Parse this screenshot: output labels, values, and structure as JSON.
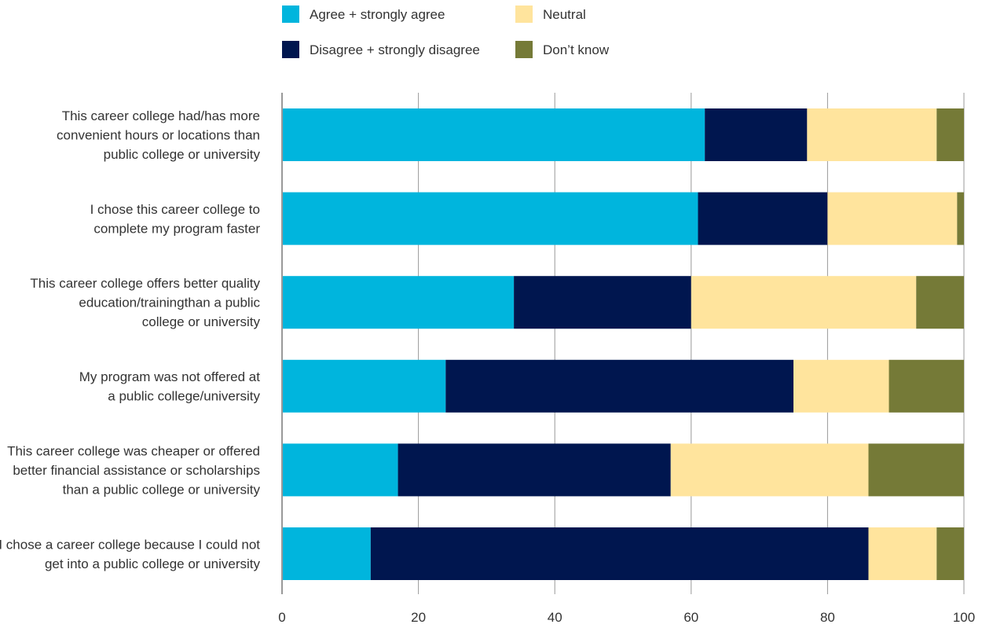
{
  "chart_data": {
    "type": "bar",
    "orientation": "horizontal",
    "stacked": true,
    "title": "",
    "xlabel": "",
    "ylabel": "",
    "xlim": [
      0,
      100
    ],
    "xticks": [
      0,
      20,
      40,
      60,
      80,
      100
    ],
    "grid": true,
    "legend_position": "top",
    "categories": [
      [
        "This career college had/has more",
        "convenient hours or locations than",
        "public college or university"
      ],
      [
        "I chose this career college to",
        "complete my program faster"
      ],
      [
        "This career college offers better quality",
        "education/trainingthan a public",
        "college or university"
      ],
      [
        "My program was not offered at",
        "a public college/university"
      ],
      [
        "This career college was cheaper or offered",
        "better financial assistance or scholarships",
        "than a public college or university"
      ],
      [
        "I chose a career college because I could not",
        "get into a public college or university"
      ]
    ],
    "series": [
      {
        "name": "Agree + strongly agree",
        "color": "#00B5DD",
        "values": [
          62,
          61,
          34,
          24,
          17,
          13
        ]
      },
      {
        "name": "Disagree + strongly disagree",
        "color": "#00164F",
        "values": [
          15,
          19,
          26,
          51,
          40,
          73
        ]
      },
      {
        "name": "Neutral",
        "color": "#FFE49D",
        "values": [
          19,
          19,
          33,
          14,
          29,
          10
        ]
      },
      {
        "name": "Don’t know",
        "color": "#757A37",
        "values": [
          4,
          1,
          7,
          11,
          14,
          4
        ]
      }
    ]
  }
}
